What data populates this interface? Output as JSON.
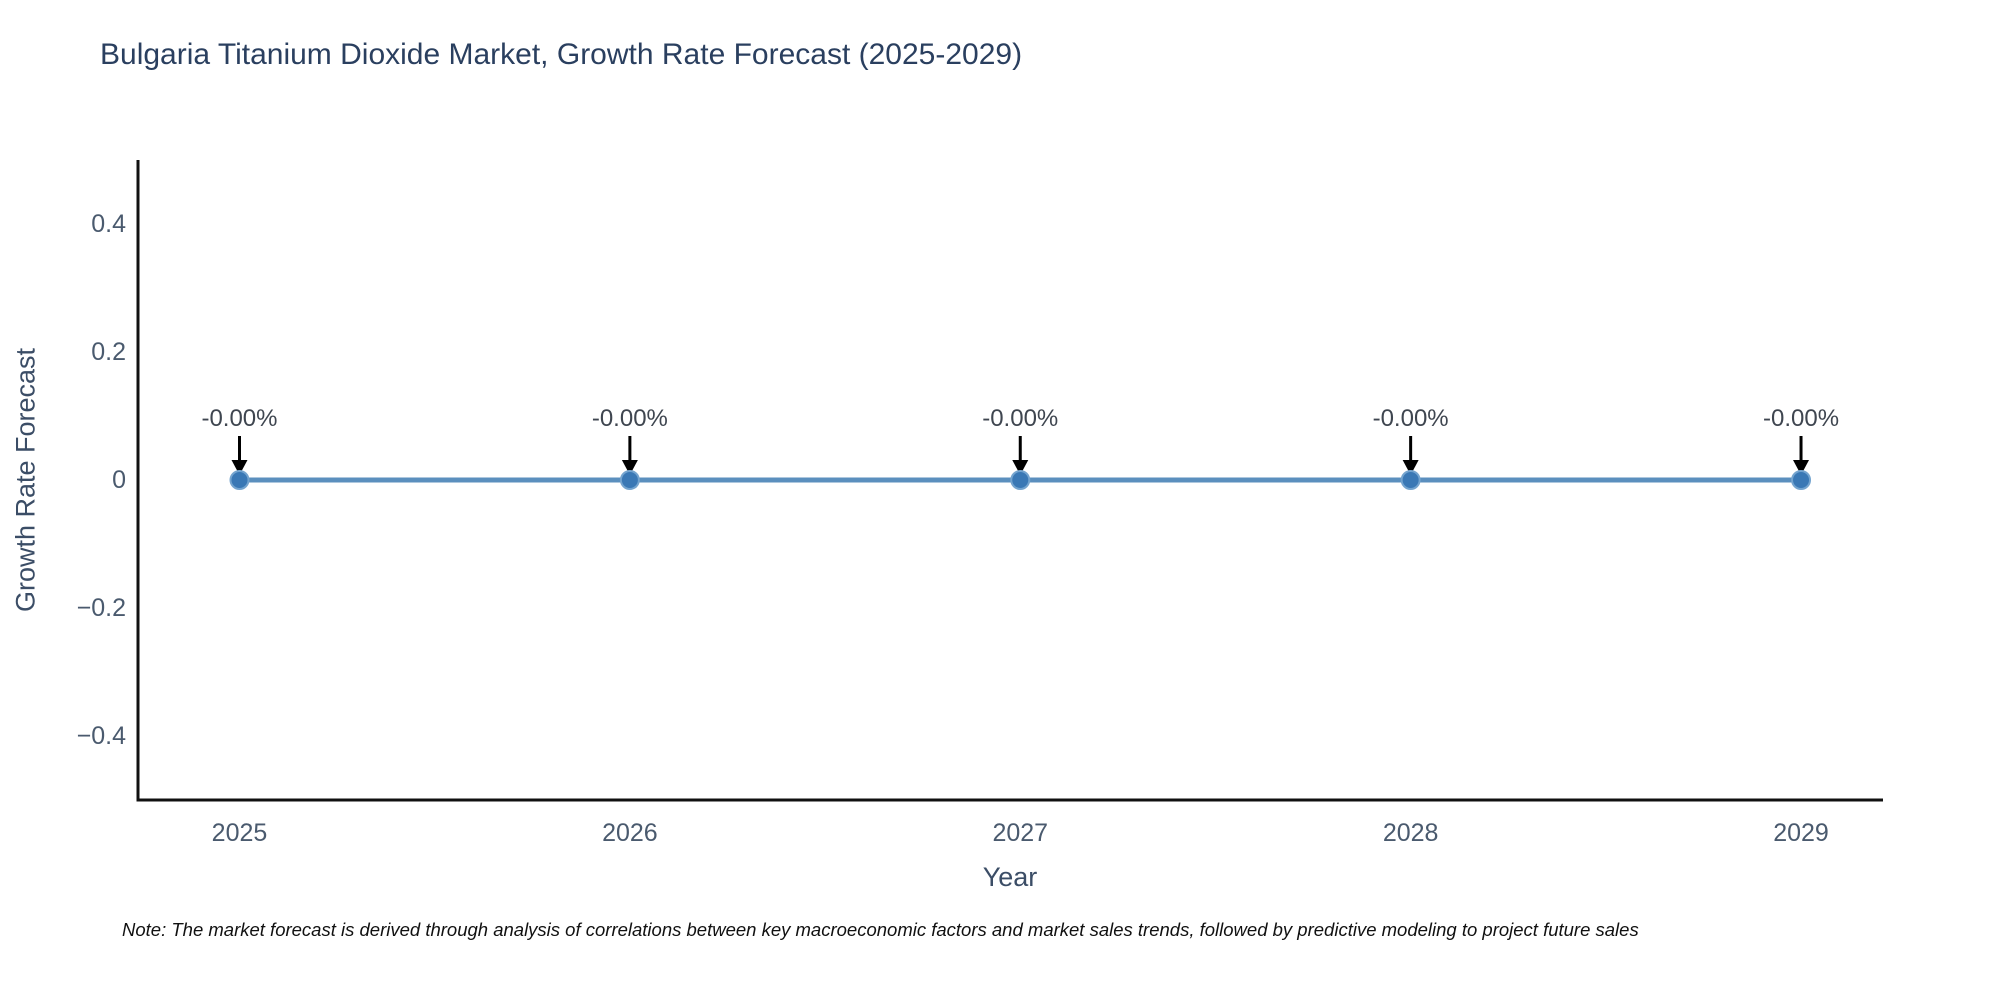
{
  "title": "Bulgaria Titanium Dioxide Market, Growth Rate Forecast (2025-2029)",
  "note": "Note: The market forecast is derived through analysis of correlations between key macroeconomic factors and market sales trends, followed by predictive modeling to project future sales",
  "chart_data": {
    "type": "line",
    "title": "Bulgaria Titanium Dioxide Market, Growth Rate Forecast (2025-2029)",
    "xlabel": "Year",
    "ylabel": "Growth Rate Forecast",
    "x": [
      2025,
      2026,
      2027,
      2028,
      2029
    ],
    "values": [
      0,
      0,
      0,
      0,
      0
    ],
    "point_labels": [
      "-0.00%",
      "-0.00%",
      "-0.00%",
      "-0.00%",
      "-0.00%"
    ],
    "xticks": [
      2025,
      2026,
      2027,
      2028,
      2029
    ],
    "xtick_labels": [
      "2025",
      "2026",
      "2027",
      "2028",
      "2029"
    ],
    "yticks": [
      0.4,
      0.2,
      0,
      -0.2,
      -0.4
    ],
    "ytick_labels": [
      "0.4",
      "0.2",
      "0",
      "−0.2",
      "−0.4"
    ],
    "xlim": [
      2024.74,
      2029.21
    ],
    "ylim": [
      -0.5,
      0.5
    ],
    "grid": false,
    "legend": false,
    "annotation_arrows": true,
    "colors": {
      "line": "#5b8fbe",
      "marker": "#3a78b5",
      "marker_rim": "#74a4cf",
      "axis": "#111111",
      "title_text": "#2a3f5f",
      "axis_title_text": "#3b4d66",
      "tick_text": "#4a5a6e",
      "annotation_text": "#3f4650",
      "arrow": "#000000"
    }
  }
}
